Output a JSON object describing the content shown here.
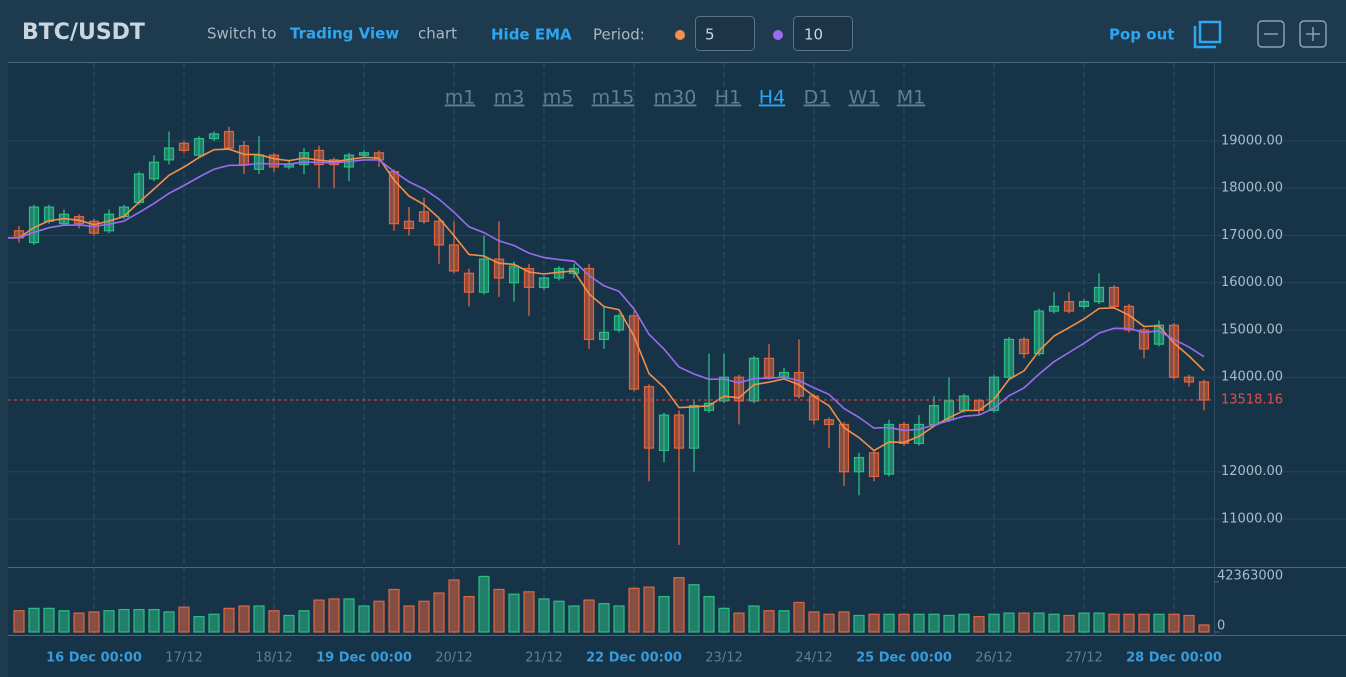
{
  "header": {
    "symbol": "BTC/USDT",
    "switch_prefix": "Switch to",
    "switch_link": "Trading View",
    "switch_suffix": "chart",
    "ema_toggle": "Hide EMA",
    "period_label": "Period:",
    "pop_out": "Pop out"
  },
  "timeframes": {
    "options": [
      "m1",
      "m3",
      "m5",
      "m15",
      "m30",
      "H1",
      "H4",
      "D1",
      "W1",
      "M1"
    ],
    "active": 6
  },
  "chart_data": {
    "type": "candlestick",
    "categories": [
      null,
      null,
      null,
      null,
      null,
      "16 Dec 00:00",
      null,
      null,
      null,
      null,
      null,
      "17/12",
      null,
      null,
      null,
      null,
      null,
      "18/12",
      null,
      null,
      null,
      null,
      null,
      "19 Dec 00:00",
      null,
      null,
      null,
      null,
      null,
      "20/12",
      null,
      null,
      null,
      null,
      null,
      "21/12",
      null,
      null,
      null,
      null,
      null,
      "22 Dec 00:00",
      null,
      null,
      null,
      null,
      null,
      "23/12",
      null,
      null,
      null,
      null,
      null,
      "24/12",
      null,
      null,
      null,
      null,
      null,
      "25 Dec 00:00",
      null,
      null,
      null,
      null,
      null,
      "26/12",
      null,
      null,
      null,
      null,
      null,
      "27/12",
      null,
      null,
      null,
      null,
      null,
      "28 Dec 00:00",
      null,
      null
    ],
    "open": [
      17100,
      16850,
      17300,
      17250,
      17400,
      17300,
      17100,
      17400,
      17700,
      18200,
      18600,
      18950,
      18700,
      19050,
      19200,
      18900,
      18400,
      18700,
      18450,
      18500,
      18800,
      18600,
      18450,
      18700,
      18750,
      18350,
      17300,
      17500,
      17300,
      16800,
      16200,
      15800,
      16500,
      16000,
      16300,
      15900,
      16100,
      16200,
      16300,
      14800,
      15000,
      15300,
      13800,
      12450,
      13200,
      12500,
      13300,
      13500,
      14000,
      13500,
      14400,
      14000,
      14100,
      13600,
      13100,
      13000,
      12000,
      12400,
      11950,
      13000,
      12600,
      13000,
      13100,
      13300,
      13500,
      13300,
      14000,
      14800,
      14500,
      15400,
      15600,
      15500,
      15600,
      15900,
      15500,
      15000,
      14700,
      15100,
      14000,
      13900
    ],
    "close": [
      16950,
      17600,
      17600,
      17450,
      17250,
      17050,
      17450,
      17600,
      18300,
      18550,
      18850,
      18800,
      19050,
      19150,
      18850,
      18500,
      18700,
      18450,
      18500,
      18750,
      18500,
      18500,
      18700,
      18750,
      18600,
      17250,
      17150,
      17300,
      16800,
      16250,
      15800,
      16500,
      16100,
      16350,
      15900,
      16100,
      16300,
      16300,
      14800,
      14950,
      15300,
      13750,
      12500,
      13200,
      12500,
      13400,
      13450,
      14000,
      13500,
      14400,
      14000,
      14100,
      13600,
      13100,
      13000,
      12000,
      12300,
      11900,
      13000,
      12600,
      13000,
      13400,
      13500,
      13600,
      13300,
      14000,
      14800,
      14500,
      15400,
      15500,
      15400,
      15600,
      15900,
      15500,
      15000,
      14600,
      15100,
      14000,
      13900,
      13518.16
    ],
    "high": [
      17200,
      17650,
      17650,
      17550,
      17450,
      17350,
      17550,
      17650,
      18350,
      18700,
      19200,
      19000,
      19100,
      19200,
      19300,
      19000,
      19100,
      18750,
      18600,
      18850,
      18900,
      18650,
      18750,
      18800,
      18800,
      18400,
      17600,
      17800,
      17350,
      17300,
      16300,
      17000,
      17300,
      16450,
      16400,
      16150,
      16350,
      16400,
      16400,
      15500,
      15350,
      15400,
      13850,
      13250,
      13300,
      13500,
      14500,
      14500,
      14050,
      14450,
      14700,
      14200,
      14800,
      13650,
      13150,
      13050,
      12400,
      12450,
      13100,
      13050,
      13200,
      13600,
      14000,
      13650,
      13550,
      14050,
      14850,
      14850,
      15450,
      15800,
      15800,
      15650,
      16200,
      15950,
      15550,
      15050,
      15200,
      15150,
      14050,
      13950
    ],
    "low": [
      16850,
      16800,
      17250,
      17200,
      17150,
      17000,
      17050,
      17350,
      17650,
      18150,
      18500,
      18750,
      18650,
      19000,
      18800,
      18300,
      18300,
      18350,
      18400,
      18300,
      18000,
      18000,
      18150,
      18650,
      18450,
      17100,
      17000,
      17250,
      16400,
      16200,
      15500,
      15750,
      15700,
      15600,
      15300,
      15850,
      16050,
      16100,
      14600,
      14600,
      14950,
      13700,
      11800,
      12200,
      10450,
      12000,
      13250,
      13450,
      13000,
      13450,
      13950,
      13950,
      13550,
      13000,
      12500,
      11700,
      11500,
      11800,
      11900,
      12550,
      12550,
      12950,
      13050,
      13250,
      13200,
      13250,
      13950,
      14400,
      14450,
      15350,
      15350,
      15450,
      15550,
      15450,
      14950,
      14400,
      14650,
      13950,
      13800,
      13300
    ],
    "volume": [
      18000000,
      20000000,
      20000000,
      18000000,
      16000000,
      17000000,
      18000000,
      19000000,
      19000000,
      19000000,
      17000000,
      21000000,
      13000000,
      15000000,
      20000000,
      22000000,
      22000000,
      18000000,
      14000000,
      18000000,
      27000000,
      28000000,
      28000000,
      22000000,
      26000000,
      36000000,
      22000000,
      26000000,
      33000000,
      44000000,
      30000000,
      47000000,
      36000000,
      32000000,
      34000000,
      28000000,
      26000000,
      22000000,
      27000000,
      24000000,
      22000000,
      37000000,
      38000000,
      30000000,
      46000000,
      40000000,
      30000000,
      20000000,
      16000000,
      22000000,
      18000000,
      18000000,
      25000000,
      17000000,
      15000000,
      17000000,
      14000000,
      15000000,
      15000000,
      15000000,
      15000000,
      15000000,
      14000000,
      15000000,
      13000000,
      15000000,
      16000000,
      16000000,
      16000000,
      15000000,
      14000000,
      16000000,
      16000000,
      15000000,
      15000000,
      15000000,
      15000000,
      15000000,
      14000000,
      6000000
    ],
    "up_color": "#2bbd86",
    "down_color": "#e0653f",
    "ema": [
      {
        "period": 5,
        "color": "#f0904a"
      },
      {
        "period": 10,
        "color": "#9b6cf0"
      }
    ],
    "ylim": [
      9984,
      20650
    ],
    "yticks": [
      {
        "value": 11000,
        "label": "11000.00"
      },
      {
        "value": 12000,
        "label": "12000.00"
      },
      {
        "value": 14000,
        "label": "14000.00"
      },
      {
        "value": 15000,
        "label": "15000.00"
      },
      {
        "value": 16000,
        "label": "16000.00"
      },
      {
        "value": 17000,
        "label": "17000.00"
      },
      {
        "value": 18000,
        "label": "18000.00"
      },
      {
        "value": 19000,
        "label": "19000.00"
      }
    ],
    "last_price": 13518.16,
    "last_price_color": "#e0504a",
    "vlim": [
      0,
      55000000
    ],
    "vticks": [
      0,
      42363000
    ],
    "grid": true
  }
}
